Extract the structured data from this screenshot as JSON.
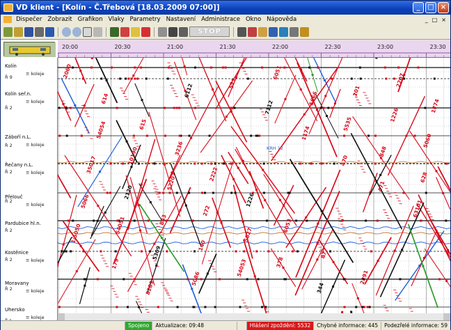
{
  "window": {
    "title": "VD klient - [Kolín - Č.Třebová [18.03.2009 07:00]]",
    "minimize_glyph": "_",
    "maximize_glyph": "□",
    "close_glyph": "×"
  },
  "menu": {
    "items": [
      "Dispečer",
      "Zobrazit",
      "Grafikon",
      "Vlaky",
      "Parametry",
      "Nastavení",
      "Administrace",
      "Okno",
      "Nápověda"
    ],
    "mdi_controls": [
      "_",
      "□",
      "×"
    ]
  },
  "toolbar": {
    "stop_label": "STOP",
    "icons": [
      "new-icon",
      "open-icon",
      "print-icon",
      "save-icon",
      "zoom-in-icon",
      "zoom-out-icon",
      "fit-icon",
      "grid-icon",
      "train-icon",
      "delay-icon",
      "message-icon",
      "pen-icon",
      "color-icon",
      "filter-icon",
      "settings-icon",
      "arrows-icon",
      "lock-icon"
    ]
  },
  "timeline": {
    "labels": [
      "20:00",
      "20:30",
      "21:00",
      "21:30",
      "22:00",
      "22:30",
      "23:00",
      "23:30"
    ]
  },
  "stations": [
    {
      "name": "Kolín",
      "tracks": "≡ koleje",
      "sub": "Ř 9"
    },
    {
      "name": "Kolín seř.n.",
      "tracks": "≡ koleje",
      "sub": ""
    },
    {
      "name": "Záboří n.L.",
      "tracks": "≡ koleje",
      "sub": ""
    },
    {
      "name": "Řečany n.L.",
      "tracks": "≡ koleje",
      "sub": ""
    },
    {
      "name": "Přelouč",
      "tracks": "≡ koleje",
      "sub": ""
    },
    {
      "name": "Pardubice hl.n.",
      "tracks": "",
      "sub": ""
    },
    {
      "name": "Kostěnice",
      "tracks": "≡ koleje",
      "sub": ""
    },
    {
      "name": "Moravany",
      "tracks": "≡ koleje",
      "sub": ""
    },
    {
      "name": "Uhersko",
      "tracks": "≡ koleje",
      "sub": "Ť 1"
    }
  ],
  "track_sublabels": [
    "Ř 2",
    "Ř 2",
    "Ř 2",
    "Ř 2",
    "Ř 2",
    "Ř 2",
    "Ř 2"
  ],
  "train_numbers": [
    "2060",
    "614",
    "615",
    "3236",
    "2222",
    "1226",
    "6053",
    "877",
    "2291",
    "2207",
    "1774",
    "54054",
    "10190",
    "52207",
    "272",
    "5827",
    "378",
    "344",
    "201",
    "1226",
    "5060",
    "35017",
    "2120",
    "843",
    "140",
    "54053",
    "6051",
    "5666",
    "5535",
    "848",
    "628",
    "5066",
    "54051",
    "5309",
    "5086",
    "521",
    "7112",
    "1174",
    "470",
    "471",
    "63101",
    "1/5050",
    "179",
    "8289",
    "6112"
  ],
  "annotation_blue": "KRH 12",
  "status": {
    "connection": "Spojeno",
    "update": "Aktualizace: 09:48",
    "delay_alert": "Hlášení zpoždění: 5532",
    "errors": "Chybné informace: 445",
    "suspicious": "Podezřelé informace: 59"
  },
  "colors": {
    "train_red": "#d80a1a",
    "train_black": "#111111",
    "train_blue": "#1a5fd8",
    "train_green": "#2a9a2a",
    "header_bg": "#ead6ee"
  }
}
